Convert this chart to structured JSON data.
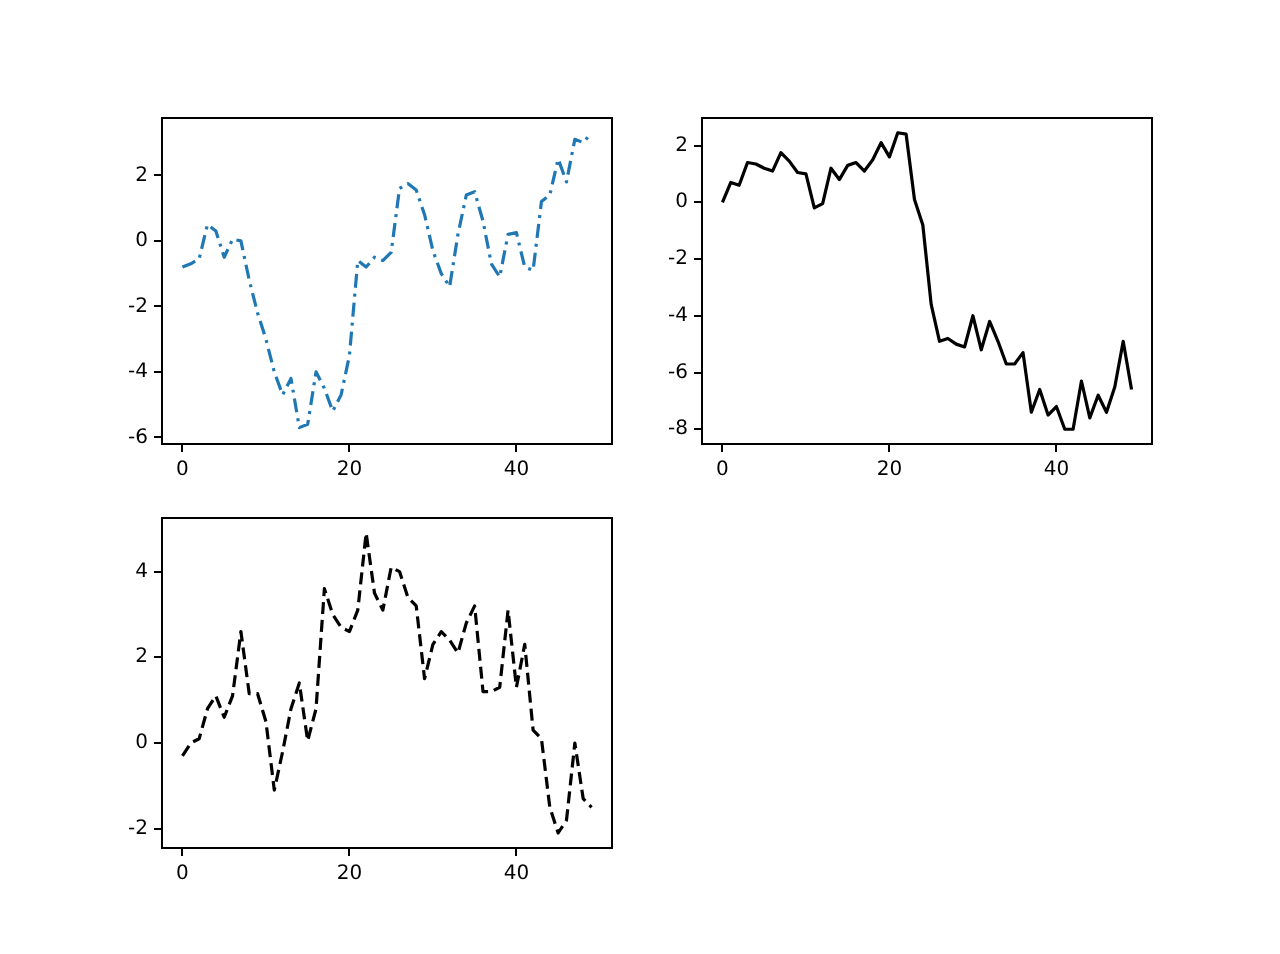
{
  "chart_data": [
    {
      "type": "line",
      "x": [
        0,
        1,
        2,
        3,
        4,
        5,
        6,
        7,
        8,
        9,
        10,
        11,
        12,
        13,
        14,
        15,
        16,
        17,
        18,
        19,
        20,
        21,
        22,
        23,
        24,
        25,
        26,
        27,
        28,
        29,
        30,
        31,
        32,
        33,
        34,
        35,
        36,
        37,
        38,
        39,
        40,
        41,
        42,
        43,
        44,
        45,
        46,
        47,
        48,
        49
      ],
      "series": [
        {
          "color": "#1f77b4",
          "line_style": "dashdot",
          "values": [
            -0.8,
            -0.7,
            -0.55,
            0.5,
            0.3,
            -0.5,
            0.05,
            0.0,
            -1.2,
            -2.2,
            -3.0,
            -4.0,
            -4.7,
            -4.2,
            -5.7,
            -5.6,
            -4.0,
            -4.5,
            -5.2,
            -4.7,
            -3.5,
            -0.6,
            -0.8,
            -0.5,
            -0.6,
            -0.35,
            1.6,
            1.75,
            1.55,
            0.8,
            -0.3,
            -1.0,
            -1.4,
            0.2,
            1.4,
            1.5,
            0.6,
            -0.7,
            -1.1,
            0.2,
            0.25,
            -0.8,
            -0.9,
            1.2,
            1.4,
            2.5,
            1.8,
            3.1,
            3.0,
            3.3
          ]
        }
      ],
      "xlim": [
        -2.45,
        51.45
      ],
      "xticks": [
        0,
        20,
        40
      ],
      "ylim": [
        -6.2,
        3.75
      ],
      "yticks": [
        -6,
        -4,
        -2,
        0,
        2
      ],
      "grid": false,
      "legend": false,
      "marker": "none"
    },
    {
      "type": "line",
      "x": [
        0,
        1,
        2,
        3,
        4,
        5,
        6,
        7,
        8,
        9,
        10,
        11,
        12,
        13,
        14,
        15,
        16,
        17,
        18,
        19,
        20,
        21,
        22,
        23,
        24,
        25,
        26,
        27,
        28,
        29,
        30,
        31,
        32,
        33,
        34,
        35,
        36,
        37,
        38,
        39,
        40,
        41,
        42,
        43,
        44,
        45,
        46,
        47,
        48,
        49
      ],
      "series": [
        {
          "color": "#000000",
          "line_style": "solid",
          "values": [
            0,
            0.7,
            0.6,
            1.4,
            1.35,
            1.2,
            1.1,
            1.75,
            1.45,
            1.05,
            1.0,
            -0.2,
            -0.05,
            1.2,
            0.8,
            1.3,
            1.4,
            1.1,
            1.5,
            2.1,
            1.6,
            2.45,
            2.4,
            0.1,
            -0.8,
            -3.6,
            -4.9,
            -4.8,
            -5.0,
            -5.1,
            -4.0,
            -5.2,
            -4.2,
            -4.9,
            -5.7,
            -5.7,
            -5.3,
            -7.4,
            -6.6,
            -7.5,
            -7.2,
            -8.0,
            -8.0,
            -6.3,
            -7.6,
            -6.8,
            -7.4,
            -6.5,
            -4.9,
            -6.6
          ]
        }
      ],
      "xlim": [
        -2.45,
        51.45
      ],
      "xticks": [
        0,
        20,
        40
      ],
      "ylim": [
        -8.52,
        2.97
      ],
      "yticks": [
        -8,
        -6,
        -4,
        -2,
        0,
        2
      ],
      "grid": false,
      "legend": false,
      "marker": "none"
    },
    {
      "type": "line",
      "x": [
        0,
        1,
        2,
        3,
        4,
        5,
        6,
        7,
        8,
        9,
        10,
        11,
        12,
        13,
        14,
        15,
        16,
        17,
        18,
        19,
        20,
        21,
        22,
        23,
        24,
        25,
        26,
        27,
        28,
        29,
        30,
        31,
        32,
        33,
        34,
        35,
        36,
        37,
        38,
        39,
        40,
        41,
        42,
        43,
        44,
        45,
        46,
        47,
        48,
        49
      ],
      "series": [
        {
          "color": "#000000",
          "line_style": "dashed",
          "values": [
            -0.3,
            0,
            0.1,
            0.8,
            1.1,
            0.6,
            1.1,
            2.6,
            1.15,
            1.15,
            0.5,
            -1.1,
            -0.2,
            0.8,
            1.4,
            0.05,
            0.8,
            3.6,
            3.0,
            2.7,
            2.6,
            3.1,
            4.9,
            3.5,
            3.1,
            4.1,
            4.0,
            3.4,
            3.2,
            1.5,
            2.3,
            2.6,
            2.4,
            2.1,
            2.8,
            3.2,
            1.2,
            1.2,
            1.3,
            3.1,
            1.3,
            2.3,
            0.3,
            0.1,
            -1.5,
            -2.1,
            -1.8,
            0.0,
            -1.3,
            -1.5
          ]
        }
      ],
      "xlim": [
        -2.45,
        51.45
      ],
      "xticks": [
        0,
        20,
        40
      ],
      "ylim": [
        -2.45,
        5.25
      ],
      "yticks": [
        -2,
        0,
        2,
        4
      ],
      "grid": false,
      "legend": false,
      "marker": "none"
    }
  ]
}
